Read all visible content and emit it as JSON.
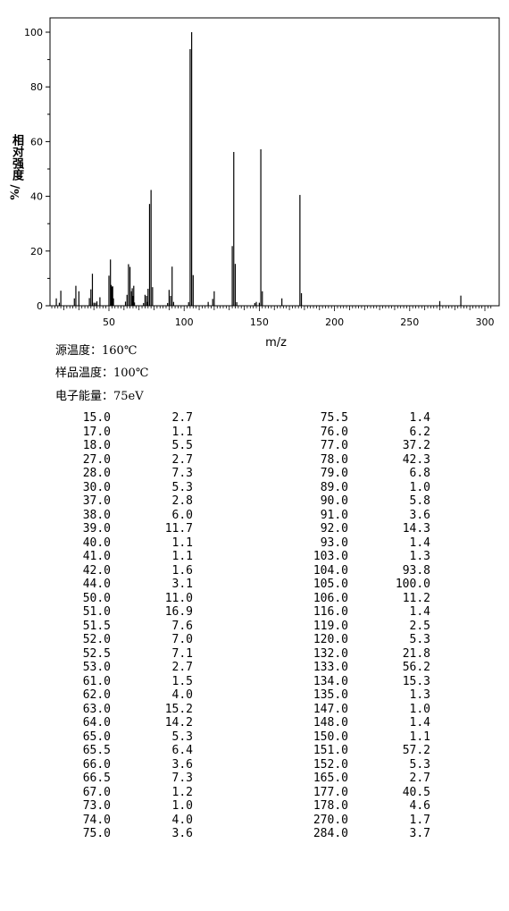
{
  "chart_data": {
    "type": "bar",
    "xlabel": "m/z",
    "ylabel": "相对强度",
    "ylabel_unit": "%/",
    "xlim": [
      10,
      305
    ],
    "ylim": [
      0,
      105
    ],
    "xticks": [
      50,
      100,
      150,
      200,
      250,
      300
    ],
    "yticks": [
      0,
      20,
      40,
      60,
      80,
      100
    ],
    "grid": false,
    "peaks": [
      {
        "mz": 15.0,
        "i": 2.7
      },
      {
        "mz": 17.0,
        "i": 1.1
      },
      {
        "mz": 18.0,
        "i": 5.5
      },
      {
        "mz": 27.0,
        "i": 2.7
      },
      {
        "mz": 28.0,
        "i": 7.3
      },
      {
        "mz": 30.0,
        "i": 5.3
      },
      {
        "mz": 37.0,
        "i": 2.8
      },
      {
        "mz": 38.0,
        "i": 6.0
      },
      {
        "mz": 39.0,
        "i": 11.7
      },
      {
        "mz": 40.0,
        "i": 1.1
      },
      {
        "mz": 41.0,
        "i": 1.1
      },
      {
        "mz": 42.0,
        "i": 1.6
      },
      {
        "mz": 44.0,
        "i": 3.1
      },
      {
        "mz": 50.0,
        "i": 11.0
      },
      {
        "mz": 51.0,
        "i": 16.9
      },
      {
        "mz": 51.5,
        "i": 7.6
      },
      {
        "mz": 52.0,
        "i": 7.0
      },
      {
        "mz": 52.5,
        "i": 7.1
      },
      {
        "mz": 53.0,
        "i": 2.7
      },
      {
        "mz": 61.0,
        "i": 1.5
      },
      {
        "mz": 62.0,
        "i": 4.0
      },
      {
        "mz": 63.0,
        "i": 15.2
      },
      {
        "mz": 64.0,
        "i": 14.2
      },
      {
        "mz": 65.0,
        "i": 5.3
      },
      {
        "mz": 65.5,
        "i": 6.4
      },
      {
        "mz": 66.0,
        "i": 3.6
      },
      {
        "mz": 66.5,
        "i": 7.3
      },
      {
        "mz": 67.0,
        "i": 1.2
      },
      {
        "mz": 73.0,
        "i": 1.0
      },
      {
        "mz": 74.0,
        "i": 4.0
      },
      {
        "mz": 75.0,
        "i": 3.6
      },
      {
        "mz": 75.5,
        "i": 1.4
      },
      {
        "mz": 76.0,
        "i": 6.2
      },
      {
        "mz": 77.0,
        "i": 37.2
      },
      {
        "mz": 78.0,
        "i": 42.3
      },
      {
        "mz": 79.0,
        "i": 6.8
      },
      {
        "mz": 89.0,
        "i": 1.0
      },
      {
        "mz": 90.0,
        "i": 5.8
      },
      {
        "mz": 91.0,
        "i": 3.6
      },
      {
        "mz": 92.0,
        "i": 14.3
      },
      {
        "mz": 93.0,
        "i": 1.4
      },
      {
        "mz": 103.0,
        "i": 1.3
      },
      {
        "mz": 104.0,
        "i": 93.8
      },
      {
        "mz": 105.0,
        "i": 100.0
      },
      {
        "mz": 106.0,
        "i": 11.2
      },
      {
        "mz": 116.0,
        "i": 1.4
      },
      {
        "mz": 119.0,
        "i": 2.5
      },
      {
        "mz": 120.0,
        "i": 5.3
      },
      {
        "mz": 132.0,
        "i": 21.8
      },
      {
        "mz": 133.0,
        "i": 56.2
      },
      {
        "mz": 134.0,
        "i": 15.3
      },
      {
        "mz": 135.0,
        "i": 1.3
      },
      {
        "mz": 147.0,
        "i": 1.0
      },
      {
        "mz": 148.0,
        "i": 1.4
      },
      {
        "mz": 150.0,
        "i": 1.1
      },
      {
        "mz": 151.0,
        "i": 57.2
      },
      {
        "mz": 152.0,
        "i": 5.3
      },
      {
        "mz": 165.0,
        "i": 2.7
      },
      {
        "mz": 177.0,
        "i": 40.5
      },
      {
        "mz": 178.0,
        "i": 4.6
      },
      {
        "mz": 270.0,
        "i": 1.7
      },
      {
        "mz": 284.0,
        "i": 3.7
      }
    ]
  },
  "conditions": {
    "source_temp": "源温度：160℃",
    "sample_temp": "样品温度：100℃",
    "electron_energy": "电子能量：75eV"
  },
  "table": {
    "left": [
      [
        "15.0",
        "2.7"
      ],
      [
        "17.0",
        "1.1"
      ],
      [
        "18.0",
        "5.5"
      ],
      [
        "27.0",
        "2.7"
      ],
      [
        "28.0",
        "7.3"
      ],
      [
        "30.0",
        "5.3"
      ],
      [
        "37.0",
        "2.8"
      ],
      [
        "38.0",
        "6.0"
      ],
      [
        "39.0",
        "11.7"
      ],
      [
        "40.0",
        "1.1"
      ],
      [
        "41.0",
        "1.1"
      ],
      [
        "42.0",
        "1.6"
      ],
      [
        "44.0",
        "3.1"
      ],
      [
        "50.0",
        "11.0"
      ],
      [
        "51.0",
        "16.9"
      ],
      [
        "51.5",
        "7.6"
      ],
      [
        "52.0",
        "7.0"
      ],
      [
        "52.5",
        "7.1"
      ],
      [
        "53.0",
        "2.7"
      ],
      [
        "61.0",
        "1.5"
      ],
      [
        "62.0",
        "4.0"
      ],
      [
        "63.0",
        "15.2"
      ],
      [
        "64.0",
        "14.2"
      ],
      [
        "65.0",
        "5.3"
      ],
      [
        "65.5",
        "6.4"
      ],
      [
        "66.0",
        "3.6"
      ],
      [
        "66.5",
        "7.3"
      ],
      [
        "67.0",
        "1.2"
      ],
      [
        "73.0",
        "1.0"
      ],
      [
        "74.0",
        "4.0"
      ],
      [
        "75.0",
        "3.6"
      ]
    ],
    "right": [
      [
        "75.5",
        "1.4"
      ],
      [
        "76.0",
        "6.2"
      ],
      [
        "77.0",
        "37.2"
      ],
      [
        "78.0",
        "42.3"
      ],
      [
        "79.0",
        "6.8"
      ],
      [
        "89.0",
        "1.0"
      ],
      [
        "90.0",
        "5.8"
      ],
      [
        "91.0",
        "3.6"
      ],
      [
        "92.0",
        "14.3"
      ],
      [
        "93.0",
        "1.4"
      ],
      [
        "103.0",
        "1.3"
      ],
      [
        "104.0",
        "93.8"
      ],
      [
        "105.0",
        "100.0"
      ],
      [
        "106.0",
        "11.2"
      ],
      [
        "116.0",
        "1.4"
      ],
      [
        "119.0",
        "2.5"
      ],
      [
        "120.0",
        "5.3"
      ],
      [
        "132.0",
        "21.8"
      ],
      [
        "133.0",
        "56.2"
      ],
      [
        "134.0",
        "15.3"
      ],
      [
        "135.0",
        "1.3"
      ],
      [
        "147.0",
        "1.0"
      ],
      [
        "148.0",
        "1.4"
      ],
      [
        "150.0",
        "1.1"
      ],
      [
        "151.0",
        "57.2"
      ],
      [
        "152.0",
        "5.3"
      ],
      [
        "165.0",
        "2.7"
      ],
      [
        "177.0",
        "40.5"
      ],
      [
        "178.0",
        "4.6"
      ],
      [
        "270.0",
        "1.7"
      ],
      [
        "284.0",
        "3.7"
      ]
    ]
  }
}
